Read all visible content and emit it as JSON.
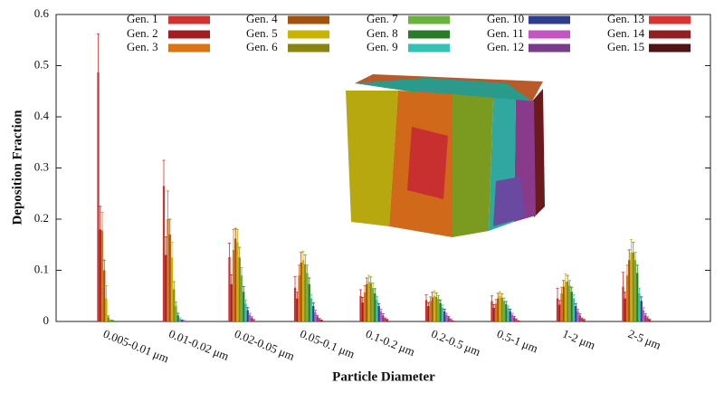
{
  "chart_data": {
    "type": "bar",
    "x_label": "Particle Diameter",
    "y_label": "Deposition Fraction",
    "categories": [
      "0.005-0.01 μm",
      "0.01-0.02 μm",
      "0.02-0.05 μm",
      "0.05-0.1 μm",
      "0.1-0.2 μm",
      "0.2-0.5 μm",
      "0.5-1 μm",
      "1-2 μm",
      "2-5 μm"
    ],
    "ylim": [
      0,
      0.6
    ],
    "yticks": [
      0,
      0.1,
      0.2,
      0.3,
      0.4,
      0.5,
      0.6
    ],
    "grid": false,
    "legend": "top",
    "series": [
      {
        "name": "Gen. 1",
        "color": "#d03232",
        "values": [
          0.487,
          0.265,
          0.126,
          0.066,
          0.05,
          0.042,
          0.04,
          0.045,
          0.068
        ],
        "errors": [
          0.075,
          0.05,
          0.027,
          0.022,
          0.012,
          0.01,
          0.01,
          0.02,
          0.028
        ]
      },
      {
        "name": "Gen. 2",
        "color": "#a01e22",
        "values": [
          0.18,
          0.13,
          0.073,
          0.045,
          0.037,
          0.03,
          0.027,
          0.033,
          0.045
        ],
        "errors": [
          0.045,
          0.035,
          0.018,
          0.012,
          0.01,
          0.007,
          0.006,
          0.008,
          0.012
        ]
      },
      {
        "name": "Gen. 3",
        "color": "#d87414",
        "values": [
          0.178,
          0.2,
          0.14,
          0.09,
          0.057,
          0.04,
          0.035,
          0.055,
          0.09
        ],
        "errors": [
          0.035,
          0.055,
          0.04,
          0.02,
          0.013,
          0.008,
          0.008,
          0.012,
          0.02
        ]
      },
      {
        "name": "Gen. 4",
        "color": "#a0520e",
        "values": [
          0.1,
          0.17,
          0.162,
          0.115,
          0.073,
          0.047,
          0.045,
          0.068,
          0.12
        ],
        "errors": [
          0.02,
          0.03,
          0.02,
          0.02,
          0.012,
          0.01,
          0.01,
          0.012,
          0.02
        ]
      },
      {
        "name": "Gen. 5",
        "color": "#c8b400",
        "values": [
          0.045,
          0.125,
          0.155,
          0.12,
          0.078,
          0.05,
          0.05,
          0.078,
          0.135
        ],
        "errors": [
          0.025,
          0.03,
          0.025,
          0.017,
          0.012,
          0.01,
          0.008,
          0.015,
          0.025
        ]
      },
      {
        "name": "Gen. 6",
        "color": "#8a8412",
        "values": [
          0.008,
          0.063,
          0.125,
          0.112,
          0.075,
          0.048,
          0.046,
          0.078,
          0.135
        ],
        "errors": [
          0.003,
          0.015,
          0.02,
          0.018,
          0.012,
          0.008,
          0.008,
          0.012,
          0.02
        ]
      },
      {
        "name": "Gen. 7",
        "color": "#6ab23e",
        "values": [
          0.002,
          0.03,
          0.09,
          0.095,
          0.065,
          0.044,
          0.04,
          0.07,
          0.12
        ],
        "errors": [
          0.001,
          0.008,
          0.015,
          0.015,
          0.01,
          0.007,
          0.006,
          0.01,
          0.015
        ]
      },
      {
        "name": "Gen. 8",
        "color": "#2a7a2a",
        "values": [
          0.001,
          0.012,
          0.058,
          0.073,
          0.055,
          0.036,
          0.034,
          0.058,
          0.095
        ],
        "errors": [
          0.001,
          0.004,
          0.01,
          0.012,
          0.009,
          0.006,
          0.005,
          0.009,
          0.015
        ]
      },
      {
        "name": "Gen. 9",
        "color": "#34c2b4",
        "values": [
          0,
          0.005,
          0.035,
          0.045,
          0.042,
          0.027,
          0.026,
          0.045,
          0.055
        ],
        "errors": [
          0,
          0.002,
          0.007,
          0.008,
          0.007,
          0.005,
          0.004,
          0.007,
          0.01
        ]
      },
      {
        "name": "Gen. 10",
        "color": "#323c8c",
        "values": [
          0,
          0.002,
          0.022,
          0.03,
          0.03,
          0.02,
          0.02,
          0.03,
          0.04
        ],
        "errors": [
          0,
          0.001,
          0.005,
          0.006,
          0.005,
          0.004,
          0.004,
          0.005,
          0.008
        ]
      },
      {
        "name": "Gen. 11",
        "color": "#c454c0",
        "values": [
          0,
          0.001,
          0.013,
          0.018,
          0.02,
          0.013,
          0.013,
          0.02,
          0.022
        ],
        "errors": [
          0,
          0.001,
          0.003,
          0.004,
          0.004,
          0.003,
          0.003,
          0.004,
          0.005
        ]
      },
      {
        "name": "Gen. 12",
        "color": "#7a3c8a",
        "values": [
          0,
          0,
          0.007,
          0.01,
          0.012,
          0.008,
          0.008,
          0.012,
          0.012
        ],
        "errors": [
          0,
          0,
          0.002,
          0.002,
          0.003,
          0.002,
          0.002,
          0.003,
          0.003
        ]
      },
      {
        "name": "Gen. 13",
        "color": "#d83434",
        "values": [
          0,
          0,
          0.003,
          0.005,
          0.006,
          0.004,
          0.004,
          0.006,
          0.007
        ],
        "errors": [
          0,
          0,
          0.001,
          0.001,
          0.001,
          0.001,
          0.001,
          0.001,
          0.002
        ]
      },
      {
        "name": "Gen. 14",
        "color": "#902024",
        "values": [
          0,
          0,
          0.001,
          0.002,
          0.003,
          0.002,
          0.002,
          0.003,
          0.003
        ],
        "errors": [
          0,
          0,
          0,
          0.001,
          0.001,
          0,
          0,
          0.001,
          0.001
        ]
      },
      {
        "name": "Gen. 15",
        "color": "#501212",
        "values": [
          0,
          0,
          0,
          0.001,
          0.001,
          0.001,
          0.001,
          0.001,
          0.001
        ],
        "errors": [
          0,
          0,
          0,
          0,
          0,
          0,
          0,
          0,
          0
        ]
      }
    ]
  }
}
